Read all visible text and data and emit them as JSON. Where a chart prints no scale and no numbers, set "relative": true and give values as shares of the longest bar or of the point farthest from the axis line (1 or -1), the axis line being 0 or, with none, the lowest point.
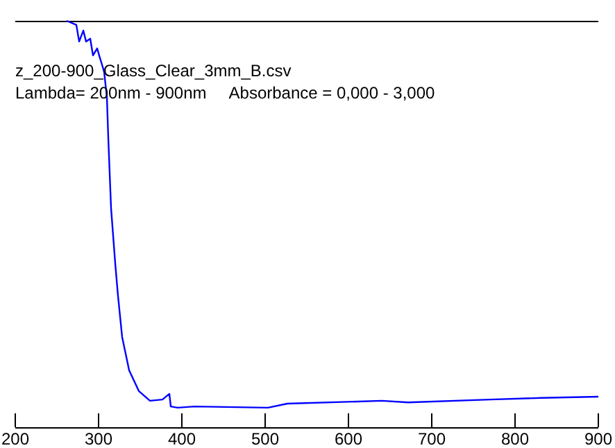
{
  "chart_data": {
    "type": "line",
    "relative": true,
    "annotations": [
      "z_200-900_Glass_Clear_3mm_B.csv",
      "Lambda= 200nm - 900nm     Absorbance = 0,000 - 3,000"
    ],
    "x": [
      261.7,
      273.3,
      276.7,
      281.7,
      285,
      290,
      293.3,
      298.3,
      301.7,
      303.3,
      306.7,
      310,
      311.7,
      315,
      320,
      323.3,
      328.3,
      336.7,
      348.3,
      361.7,
      376.7,
      385,
      386.7,
      395,
      415,
      503.3,
      526.7,
      640,
      671.7,
      770,
      831.7,
      900
    ],
    "xlim": [
      200,
      900
    ],
    "xticks": [
      200,
      300,
      400,
      500,
      600,
      700,
      800,
      900
    ],
    "series": [
      {
        "color": "#0000ff",
        "values": [
          1.0,
          0.99,
          0.949,
          0.976,
          0.949,
          0.956,
          0.915,
          0.932,
          0.908,
          0.898,
          0.874,
          0.812,
          0.71,
          0.539,
          0.403,
          0.324,
          0.222,
          0.14,
          0.089,
          0.065,
          0.068,
          0.082,
          0.051,
          0.048,
          0.051,
          0.048,
          0.058,
          0.065,
          0.061,
          0.068,
          0.072,
          0.075
        ]
      }
    ],
    "grid": false
  }
}
